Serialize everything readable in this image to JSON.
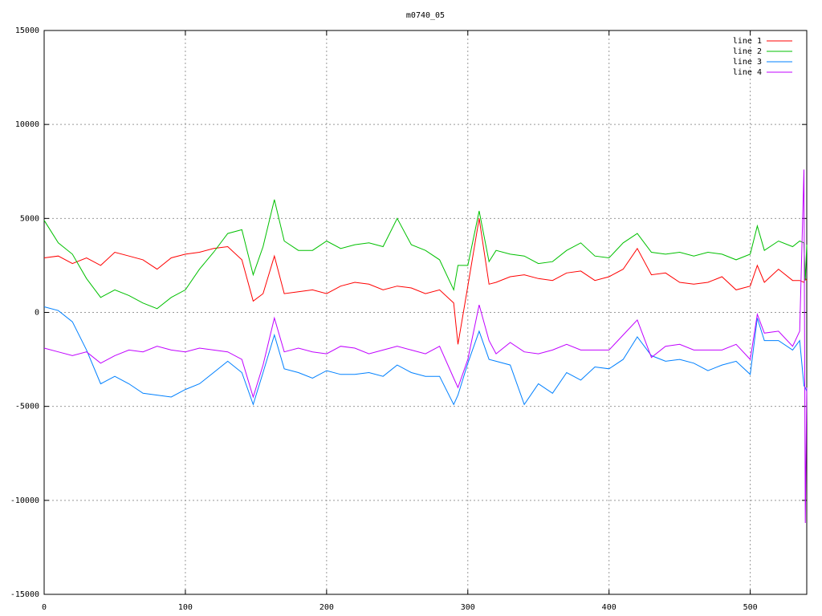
{
  "chart_data": {
    "type": "line",
    "title": "m0740_05",
    "x": [
      0,
      10,
      20,
      30,
      40,
      50,
      60,
      70,
      80,
      90,
      100,
      110,
      120,
      130,
      140,
      148,
      155,
      163,
      170,
      180,
      190,
      200,
      210,
      220,
      230,
      240,
      250,
      260,
      270,
      280,
      290,
      293,
      300,
      308,
      315,
      320,
      330,
      340,
      350,
      360,
      370,
      380,
      390,
      400,
      410,
      420,
      430,
      440,
      450,
      460,
      470,
      480,
      490,
      500,
      505,
      510,
      520,
      530,
      535,
      538,
      539,
      540
    ],
    "series": [
      {
        "name": "line 1",
        "color": "#ff0000",
        "values": [
          2900,
          3000,
          2600,
          2900,
          2500,
          3200,
          3000,
          2800,
          2300,
          2900,
          3100,
          3200,
          3400,
          3500,
          2800,
          600,
          1000,
          3000,
          1000,
          1100,
          1200,
          1000,
          1400,
          1600,
          1500,
          1200,
          1400,
          1300,
          1000,
          1200,
          500,
          -1700,
          1400,
          5000,
          1500,
          1600,
          1900,
          2000,
          1800,
          1700,
          2100,
          2200,
          1700,
          1900,
          2300,
          3400,
          2000,
          2100,
          1600,
          1500,
          1600,
          1900,
          1200,
          1400,
          2500,
          1600,
          2300,
          1700,
          1700,
          1600,
          1800,
          1700
        ]
      },
      {
        "name": "line 2",
        "color": "#00c000",
        "values": [
          4900,
          3700,
          3100,
          1800,
          800,
          1200,
          900,
          500,
          200,
          800,
          1200,
          2300,
          3200,
          4200,
          4400,
          2000,
          3500,
          6000,
          3800,
          3300,
          3300,
          3800,
          3400,
          3600,
          3700,
          3500,
          5000,
          3600,
          3300,
          2800,
          1200,
          2500,
          2500,
          5400,
          2700,
          3300,
          3100,
          3000,
          2600,
          2700,
          3300,
          3700,
          3000,
          2900,
          3700,
          4200,
          3200,
          3100,
          3200,
          3000,
          3200,
          3100,
          2800,
          3100,
          4600,
          3300,
          3800,
          3500,
          3800,
          3700,
          1700,
          3600
        ]
      },
      {
        "name": "line 3",
        "color": "#0080ff",
        "values": [
          300,
          100,
          -500,
          -2000,
          -3800,
          -3400,
          -3800,
          -4300,
          -4400,
          -4500,
          -4100,
          -3800,
          -3200,
          -2600,
          -3200,
          -4900,
          -3200,
          -1200,
          -3000,
          -3200,
          -3500,
          -3100,
          -3300,
          -3300,
          -3200,
          -3400,
          -2800,
          -3200,
          -3400,
          -3400,
          -4900,
          -4400,
          -2700,
          -1000,
          -2500,
          -2600,
          -2800,
          -4900,
          -3800,
          -4300,
          -3200,
          -3600,
          -2900,
          -3000,
          -2500,
          -1300,
          -2300,
          -2600,
          -2500,
          -2700,
          -3100,
          -2800,
          -2600,
          -3300,
          -300,
          -1500,
          -1500,
          -2000,
          -1500,
          -3900,
          -4000,
          -4200
        ]
      },
      {
        "name": "line 4",
        "color": "#c000ff",
        "values": [
          -1900,
          -2100,
          -2300,
          -2100,
          -2700,
          -2300,
          -2000,
          -2100,
          -1800,
          -2000,
          -2100,
          -1900,
          -2000,
          -2100,
          -2500,
          -4500,
          -2800,
          -300,
          -2100,
          -1900,
          -2100,
          -2200,
          -1800,
          -1900,
          -2200,
          -2000,
          -1800,
          -2000,
          -2200,
          -1800,
          -3500,
          -4000,
          -2500,
          400,
          -1500,
          -2200,
          -1600,
          -2100,
          -2200,
          -2000,
          -1700,
          -2000,
          -2000,
          -2000,
          -1200,
          -400,
          -2400,
          -1800,
          -1700,
          -2000,
          -2000,
          -2000,
          -1700,
          -2500,
          -100,
          -1100,
          -1000,
          -1800,
          -1000,
          7600,
          -11200,
          -4000
        ]
      }
    ],
    "xlim": [
      0,
      540
    ],
    "xticks": [
      0,
      100,
      200,
      300,
      400,
      500
    ],
    "ylim": [
      -15000,
      15000
    ],
    "yticks": [
      -15000,
      -10000,
      -5000,
      0,
      5000,
      10000,
      15000
    ],
    "grid": true,
    "legend": "top-right"
  }
}
